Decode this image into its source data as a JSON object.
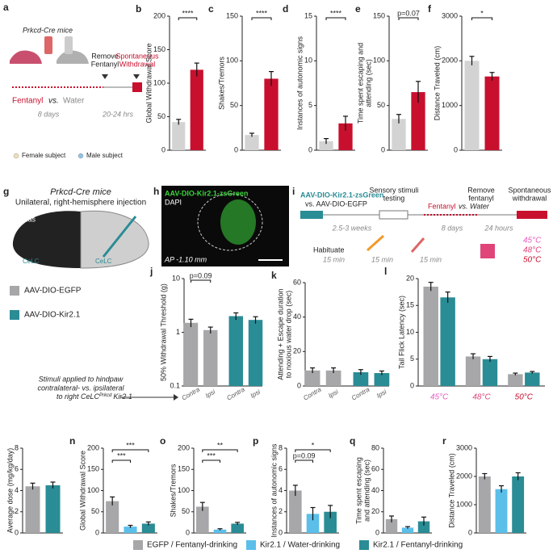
{
  "chart_data": [
    {
      "type": "bar",
      "label": "b",
      "ylabel": "Global Withdrawal Score",
      "values": [
        42,
        120
      ],
      "errors": [
        4,
        10
      ],
      "colors": [
        "#d3d3d3",
        "#c8102e"
      ],
      "ylim": [
        0,
        200
      ],
      "yticks": [
        0,
        50,
        100,
        150,
        200
      ],
      "annotations": [
        {
          "text": "****",
          "from": 0,
          "to": 1
        }
      ]
    },
    {
      "type": "bar",
      "label": "c",
      "ylabel": "Shakes/Tremors",
      "values": [
        17,
        80
      ],
      "errors": [
        2,
        8
      ],
      "colors": [
        "#d3d3d3",
        "#c8102e"
      ],
      "ylim": [
        0,
        150
      ],
      "yticks": [
        0,
        50,
        100,
        150
      ],
      "annotations": [
        {
          "text": "****",
          "from": 0,
          "to": 1
        }
      ]
    },
    {
      "type": "bar",
      "label": "d",
      "ylabel": "Instances of autonomic signs",
      "values": [
        1,
        3
      ],
      "errors": [
        0.3,
        0.8
      ],
      "colors": [
        "#d3d3d3",
        "#c8102e"
      ],
      "ylim": [
        0,
        15
      ],
      "yticks": [
        0,
        5,
        10,
        15
      ],
      "annotations": [
        {
          "text": "****",
          "from": 0,
          "to": 1
        }
      ]
    },
    {
      "type": "bar",
      "label": "e",
      "ylabel": [
        "Time spent escaping and",
        "attending (sec)"
      ],
      "values": [
        35,
        65
      ],
      "errors": [
        5,
        12
      ],
      "colors": [
        "#d3d3d3",
        "#c8102e"
      ],
      "ylim": [
        0,
        150
      ],
      "yticks": [
        0,
        50,
        100,
        150
      ],
      "annotations": [
        {
          "text": "p=0.07",
          "from": 0,
          "to": 1
        }
      ]
    },
    {
      "type": "bar",
      "label": "f",
      "ylabel": "Distance Traveled (cm)",
      "values": [
        2000,
        1650
      ],
      "errors": [
        100,
        90
      ],
      "colors": [
        "#d3d3d3",
        "#c8102e"
      ],
      "ylim": [
        0,
        3000
      ],
      "yticks": [
        0,
        1000,
        2000,
        3000
      ],
      "annotations": [
        {
          "text": "*",
          "from": 0,
          "to": 1
        }
      ]
    },
    {
      "type": "bar",
      "label": "j",
      "ylabel": "50% Withdrawal Threshold (g)",
      "categories": [
        "Contra",
        "Ipsi",
        "Contra",
        "Ipsi"
      ],
      "values": [
        1.5,
        1.1,
        2.0,
        1.7
      ],
      "errors": [
        0.25,
        0.15,
        0.3,
        0.25
      ],
      "colors": [
        "#a7a7a9",
        "#a7a7a9",
        "#2a8c95",
        "#2a8c95"
      ],
      "log": true,
      "ylim": [
        0.1,
        10
      ],
      "yticks": [
        0.1,
        1,
        10
      ],
      "annotations": [
        {
          "text": "p=0.09",
          "from": 0,
          "to": 1
        }
      ]
    },
    {
      "type": "bar",
      "label": "k",
      "ylabel": [
        "Attending + Escape duration",
        "to noxious water drop (sec)"
      ],
      "categories": [
        "Contra",
        "Ipsi",
        "Contra",
        "Ipsi"
      ],
      "values": [
        9,
        9,
        8,
        7.5
      ],
      "errors": [
        1.5,
        1.5,
        1.5,
        1.2
      ],
      "colors": [
        "#a7a7a9",
        "#a7a7a9",
        "#2a8c95",
        "#2a8c95"
      ],
      "ylim": [
        0,
        60
      ],
      "yticks": [
        0,
        20,
        40,
        60
      ]
    },
    {
      "type": "grouped-bar",
      "label": "l",
      "ylabel": "Tail Flick Latency (sec)",
      "categories": [
        "45°C",
        "48°C",
        "50°C"
      ],
      "category_colors": [
        "#e85fc0",
        "#e0457a",
        "#c8102e"
      ],
      "series": [
        {
          "color": "#a7a7a9",
          "values": [
            18.5,
            5.5,
            2.2
          ],
          "errors": [
            0.8,
            0.5,
            0.2
          ]
        },
        {
          "color": "#2a8c95",
          "values": [
            16.5,
            5,
            2.5
          ],
          "errors": [
            1,
            0.5,
            0.2
          ]
        }
      ],
      "ylim": [
        0,
        20
      ],
      "yticks": [
        0,
        5,
        10,
        15,
        20
      ]
    },
    {
      "type": "bar",
      "label": "m",
      "ylabel": "Average dose (mg/kg/day)",
      "values": [
        4.4,
        4.5
      ],
      "errors": [
        0.3,
        0.3
      ],
      "colors": [
        "#a7a7a9",
        "#2a8c95"
      ],
      "ylim": [
        0,
        8
      ],
      "yticks": [
        0,
        2,
        4,
        6,
        8
      ]
    },
    {
      "type": "bar",
      "label": "n",
      "ylabel": "Global Withdrawal Score",
      "values": [
        75,
        15,
        22
      ],
      "errors": [
        10,
        3,
        4
      ],
      "colors": [
        "#a7a7a9",
        "#5bbfea",
        "#2a8c95"
      ],
      "ylim": [
        0,
        200
      ],
      "yticks": [
        0,
        50,
        100,
        150,
        200
      ],
      "annotations": [
        {
          "text": "***",
          "from": 0,
          "to": 2
        },
        {
          "text": "***",
          "from": 0,
          "to": 1
        }
      ]
    },
    {
      "type": "bar",
      "label": "o",
      "ylabel": "Shakes/Tremors",
      "values": [
        62,
        8,
        22
      ],
      "errors": [
        10,
        2,
        3
      ],
      "colors": [
        "#a7a7a9",
        "#5bbfea",
        "#2a8c95"
      ],
      "ylim": [
        0,
        200
      ],
      "yticks": [
        0,
        50,
        100,
        150,
        200
      ],
      "annotations": [
        {
          "text": "**",
          "from": 0,
          "to": 2
        },
        {
          "text": "***",
          "from": 0,
          "to": 1
        }
      ]
    },
    {
      "type": "bar",
      "label": "p",
      "ylabel": "Instances of autonomic signs",
      "values": [
        4,
        1.8,
        2
      ],
      "errors": [
        0.5,
        0.6,
        0.6
      ],
      "colors": [
        "#a7a7a9",
        "#5bbfea",
        "#2a8c95"
      ],
      "ylim": [
        0,
        8
      ],
      "yticks": [
        0,
        2,
        4,
        6,
        8
      ],
      "annotations": [
        {
          "text": "*",
          "from": 0,
          "to": 2
        },
        {
          "text": "p=0.09",
          "from": 0,
          "to": 1
        }
      ]
    },
    {
      "type": "bar",
      "label": "q",
      "ylabel": [
        "Time spent escaping",
        "and attending (sec)"
      ],
      "values": [
        13,
        5,
        11
      ],
      "errors": [
        3,
        1,
        4
      ],
      "colors": [
        "#a7a7a9",
        "#5bbfea",
        "#2a8c95"
      ],
      "ylim": [
        0,
        80
      ],
      "yticks": [
        0,
        20,
        40,
        60,
        80
      ]
    },
    {
      "type": "bar",
      "label": "r",
      "ylabel": "Distance Traveled (cm)",
      "values": [
        2000,
        1550,
        2000
      ],
      "errors": [
        100,
        120,
        130
      ],
      "colors": [
        "#a7a7a9",
        "#5bbfea",
        "#2a8c95"
      ],
      "ylim": [
        0,
        3000
      ],
      "yticks": [
        0,
        1000,
        2000,
        3000
      ]
    }
  ],
  "panel_a": {
    "label": "a",
    "mice": "Prkcd-Cre mice",
    "fentanyl": "Fentanyl",
    "vs": "vs.",
    "water": "Water",
    "remove": [
      "Remove",
      "Fentanyl"
    ],
    "withdrawal": [
      "Spontaneous",
      "Withdrawal"
    ],
    "days": "8 days",
    "hours": "20-24 hrs",
    "female": "Female subject",
    "male": "Male subject"
  },
  "panel_g": {
    "label": "g",
    "mice": "Prkcd-Cre mice",
    "injection": "Unilateral, right-hemisphere injection",
    "atlas": "Atlas",
    "celc_left": "CeLC",
    "celc_right": "CeLC"
  },
  "panel_h": {
    "label": "h",
    "virus": "AAV-DIO-Kir2.1-zsGreen",
    "dapi": "DAPI",
    "ap": "AP -1.10 mm"
  },
  "panel_i": {
    "label": "i",
    "virus": "AAV-DIO-Kir2.1-zsGreen",
    "control": "vs. AAV-DIO-EGFP",
    "testing": [
      "Sensory stimuli",
      "testing"
    ],
    "remove": [
      "Remove",
      "fentanyl"
    ],
    "withdrawal": [
      "Spontaneous",
      "withdrawal"
    ],
    "fentanyl": "Fentanyl",
    "water": "vs. Water",
    "weeks": "2.5-3 weeks",
    "days": "8 days",
    "hours": "24 hours",
    "habituate": "Habituate",
    "mins": [
      "15 min",
      "15 min",
      "15 min"
    ],
    "temps": [
      "45°C",
      "48°C",
      "50°C"
    ]
  },
  "legend_jkl": {
    "egfp": "AAV-DIO-EGFP",
    "kir": "AAV-DIO-Kir2.1",
    "note": [
      "Stimuli applied to hindpaw",
      "contralateral- vs. ipsilateral",
      "to right CeLC"
    ],
    "sup": "Prkcd",
    "note_end": "Kir2.1"
  },
  "legend_bottom": [
    "EGFP / Fentanyl-drinking",
    "Kir2.1 / Water-drinking",
    "Kir2.1 / Fentanyl-drinking"
  ]
}
